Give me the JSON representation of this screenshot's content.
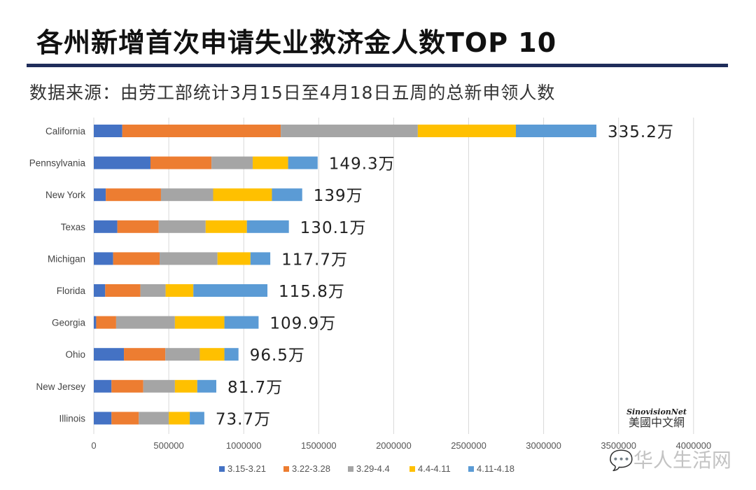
{
  "chart_data": {
    "type": "bar",
    "orientation": "horizontal",
    "stacked": true,
    "title": "各州新增首次申请失业救济金人数TOP 10",
    "subtitle": "数据来源：由劳工部统计3月15日至4月18日五周的总新申领人数",
    "categories": [
      "California",
      "Pennsylvania",
      "New York",
      "Texas",
      "Michigan",
      "Florida",
      "Georgia",
      "Ohio",
      "New Jersey",
      "Illinois"
    ],
    "series": [
      {
        "name": "3.15-3.21",
        "color": "#4472C4",
        "values": [
          190000,
          378000,
          80000,
          157000,
          129000,
          76000,
          16000,
          201000,
          118000,
          118000
        ]
      },
      {
        "name": "3.22-3.28",
        "color": "#ED7D31",
        "values": [
          1057000,
          407000,
          368000,
          276000,
          310000,
          235000,
          133000,
          276000,
          212000,
          182000
        ]
      },
      {
        "name": "3.29-4.4",
        "color": "#A5A5A5",
        "values": [
          914000,
          275000,
          348000,
          313000,
          386000,
          168000,
          392000,
          230000,
          211000,
          200000
        ]
      },
      {
        "name": "4.4-4.11",
        "color": "#FFC000",
        "values": [
          654000,
          236000,
          392000,
          275000,
          220000,
          185000,
          330000,
          164000,
          149000,
          140000
        ]
      },
      {
        "name": "4.11-4.18",
        "color": "#5B9BD5",
        "values": [
          537000,
          197000,
          202000,
          280000,
          132000,
          494000,
          228000,
          94000,
          127000,
          97000
        ]
      }
    ],
    "data_labels": [
      "335.2万",
      "149.3万",
      "139万",
      "130.1万",
      "117.7万",
      "115.8万",
      "109.9万",
      "96.5万",
      "81.7万",
      "73.7万"
    ],
    "xlim": [
      0,
      4000000
    ],
    "xticks": [
      "0",
      "500000",
      "1000000",
      "1500000",
      "2000000",
      "2500000",
      "3000000",
      "3500000",
      "4000000"
    ],
    "grid": true,
    "legend_position": "bottom"
  },
  "watermarks": {
    "logo_en": "SinovisionNet",
    "logo_zh": "美國中文網",
    "wechat": "华人生活网"
  }
}
